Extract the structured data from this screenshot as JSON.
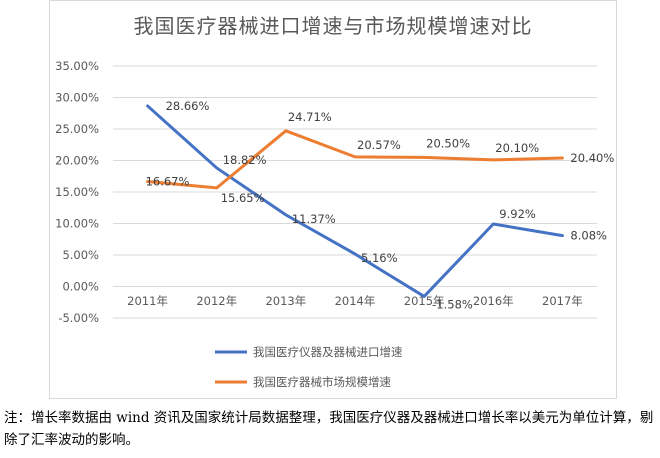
{
  "chart_data": {
    "type": "line",
    "title": "我国医疗器械进口增速与市场规模增速对比",
    "categories": [
      "2011年",
      "2012年",
      "2013年",
      "2014年",
      "2015年",
      "2016年",
      "2017年"
    ],
    "ylim": [
      -0.05,
      0.35
    ],
    "ytick_step": 0.05,
    "yticks": [
      "-5.00%",
      "0.00%",
      "5.00%",
      "10.00%",
      "15.00%",
      "20.00%",
      "25.00%",
      "30.00%",
      "35.00%"
    ],
    "grid": true,
    "legend_position": "bottom",
    "series": [
      {
        "name": "我国医疗仪器及器械进口增速",
        "color": "#4472c4",
        "values": [
          0.2866,
          0.1882,
          0.1137,
          0.0516,
          -0.0158,
          0.0992,
          0.0808
        ],
        "labels": [
          "28.66%",
          "18.82%",
          "11.37%",
          "5.16%",
          "-1.58%",
          "9.92%",
          "8.08%"
        ]
      },
      {
        "name": "我国医疗器械市场规模增速",
        "color": "#ed7d31",
        "values": [
          0.1667,
          0.1565,
          0.2471,
          0.2057,
          0.205,
          0.201,
          0.204
        ],
        "labels": [
          "16.67%",
          "15.65%",
          "24.71%",
          "20.57%",
          "20.50%",
          "20.10%",
          "20.40%"
        ]
      }
    ]
  },
  "note": "注：增长率数据由 wind 资讯及国家统计局数据整理，我国医疗仪器及器械进口增长率以美元为单位计算，剔除了汇率波动的影响。"
}
